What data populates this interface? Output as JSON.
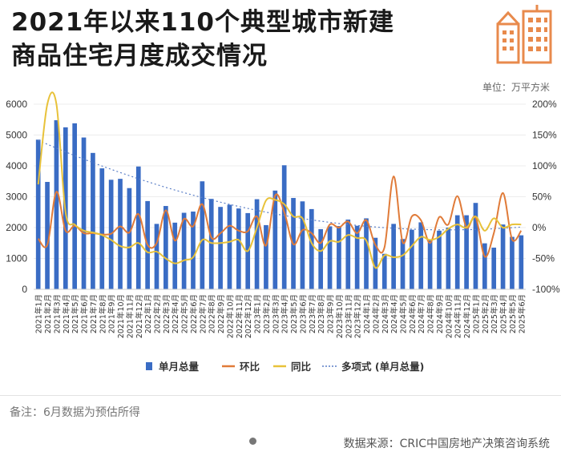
{
  "title_line1": "2021年以来110个典型城市新建",
  "title_line2": "商品住宅月度成交情况",
  "unit_label": "单位：万平方米",
  "note": "备注：6月数据为预估所得",
  "source": "数据来源：CRIC中国房地产决策咨询系统",
  "colors": {
    "bar": "#3a6cc4",
    "mom": "#e07b39",
    "yoy": "#e8c23a",
    "trend": "#5b7fc7",
    "accent": "#e88a4c"
  },
  "chart_data": {
    "type": "bar",
    "categories": [
      "2021年1月",
      "2021年2月",
      "2021年3月",
      "2021年4月",
      "2021年5月",
      "2021年6月",
      "2021年7月",
      "2021年8月",
      "2021年9月",
      "2021年10月",
      "2021年11月",
      "2021年12月",
      "2022年1月",
      "2022年2月",
      "2022年3月",
      "2022年4月",
      "2022年5月",
      "2022年6月",
      "2022年7月",
      "2022年8月",
      "2022年9月",
      "2022年10月",
      "2022年11月",
      "2022年12月",
      "2023年1月",
      "2023年2月",
      "2023年3月",
      "2023年4月",
      "2023年5月",
      "2023年6月",
      "2023年7月",
      "2023年8月",
      "2023年9月",
      "2023年10月",
      "2023年11月",
      "2023年12月",
      "2024年1月",
      "2024年2月",
      "2024年3月",
      "2024年4月",
      "2024年5月",
      "2024年6月",
      "2024年7月",
      "2024年8月",
      "2024年9月",
      "2024年10月",
      "2024年11月",
      "2024年12月",
      "2025年1月",
      "2025年2月",
      "2025年3月",
      "2025年4月",
      "2025年5月",
      "2025年6月"
    ],
    "y_left": {
      "ticks": [
        0,
        1000,
        2000,
        3000,
        4000,
        5000,
        6000
      ],
      "ylim": [
        0,
        6000
      ]
    },
    "y_right": {
      "ticks": [
        "-100%",
        "-50%",
        "0%",
        "50%",
        "100%",
        "150%",
        "200%"
      ],
      "ylim": [
        -100,
        200
      ]
    },
    "legend": [
      "单月总量",
      "环比",
      "同比",
      "多项式 (单月总量)"
    ],
    "legend_position": "bottom",
    "series": [
      {
        "name": "单月总量",
        "kind": "bar",
        "axis": "left",
        "values": [
          4850,
          3480,
          5480,
          5250,
          5380,
          4920,
          4420,
          3920,
          3550,
          3580,
          3280,
          3980,
          2860,
          2120,
          2700,
          2160,
          2480,
          2520,
          3500,
          2930,
          2670,
          2740,
          2620,
          2470,
          2920,
          2080,
          3200,
          4020,
          2960,
          2850,
          2600,
          1950,
          2040,
          2050,
          2260,
          2060,
          2300,
          1670,
          1150,
          2120,
          1630,
          1930,
          2170,
          1620,
          1900,
          2000,
          2400,
          2400,
          2800,
          1490,
          1350,
          2100,
          1700,
          1750
        ]
      },
      {
        "name": "环比",
        "kind": "line",
        "axis": "right",
        "values": [
          -18,
          -28,
          58,
          -5,
          3,
          -9,
          -9,
          -11,
          -10,
          2,
          -8,
          22,
          -28,
          -25,
          28,
          -21,
          14,
          2,
          38,
          -16,
          -9,
          3,
          -5,
          -6,
          18,
          -29,
          52,
          25,
          -27,
          -4,
          -9,
          -25,
          5,
          0,
          10,
          -9,
          12,
          -28,
          -32,
          83,
          -24,
          18,
          12,
          -25,
          17,
          5,
          51,
          0,
          17,
          -47,
          -9,
          56,
          -19,
          -5
        ]
      },
      {
        "name": "同比",
        "kind": "line",
        "axis": "right",
        "values": [
          70,
          200,
          200,
          25,
          5,
          -5,
          -8,
          -12,
          -20,
          -30,
          -32,
          -25,
          -40,
          -39,
          -50,
          -58,
          -53,
          -48,
          -20,
          -25,
          -25,
          -23,
          -20,
          -38,
          0,
          44,
          45,
          38,
          18,
          15,
          -25,
          -38,
          -22,
          -23,
          -12,
          -17,
          -21,
          -65,
          -45,
          -48,
          -45,
          -30,
          -15,
          -20,
          -15,
          -2,
          5,
          0,
          18,
          -5,
          15,
          0,
          5,
          5
        ]
      }
    ]
  }
}
